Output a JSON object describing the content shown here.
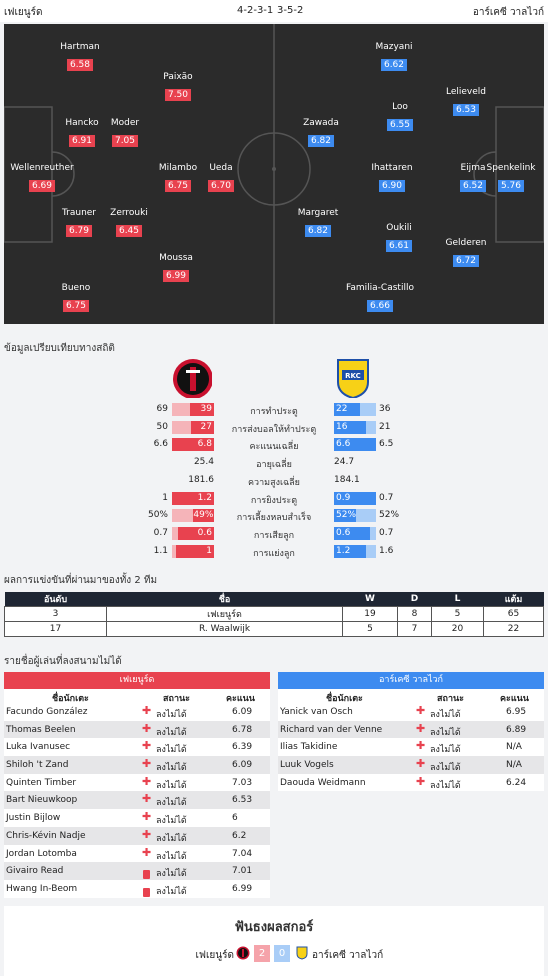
{
  "header": {
    "home_team": "เฟเยนูร์ด",
    "home_formation": "4-2-3-1",
    "away_formation": "3-5-2",
    "away_team": "อาร์เคซี วาลไวก์"
  },
  "lineup": {
    "home": [
      {
        "name": "Hartman",
        "rating": "6.58"
      },
      {
        "name": "Paixão",
        "rating": "7.50"
      },
      {
        "name": "Hancko",
        "rating": "6.91"
      },
      {
        "name": "Moder",
        "rating": "7.05"
      },
      {
        "name": "Wellenreuther",
        "rating": "6.69"
      },
      {
        "name": "Milambo",
        "rating": "6.75"
      },
      {
        "name": "Ueda",
        "rating": "6.70"
      },
      {
        "name": "Trauner",
        "rating": "6.79"
      },
      {
        "name": "Zerrouki",
        "rating": "6.45"
      },
      {
        "name": "Moussa",
        "rating": "6.99"
      },
      {
        "name": "Bueno",
        "rating": "6.75"
      }
    ],
    "away": [
      {
        "name": "Mazyani",
        "rating": "6.62"
      },
      {
        "name": "Lelieveld",
        "rating": "6.53"
      },
      {
        "name": "Loo",
        "rating": "6.55"
      },
      {
        "name": "Zawada",
        "rating": "6.82"
      },
      {
        "name": "Ihattaren",
        "rating": "6.90"
      },
      {
        "name": "Eijma",
        "rating": "6.52"
      },
      {
        "name": "Spenkelink",
        "rating": "5.76"
      },
      {
        "name": "Margaret",
        "rating": "6.82"
      },
      {
        "name": "Oukili",
        "rating": "6.61"
      },
      {
        "name": "Gelderen",
        "rating": "6.72"
      },
      {
        "name": "Familia-Castillo",
        "rating": "6.66"
      }
    ]
  },
  "stats": {
    "title": "ข้อมูลเปรียบเทียบทางสถิติ",
    "rows": [
      {
        "label": "การทำประตู",
        "home_total": "69",
        "home_value": "39",
        "home_fill": 0.57,
        "away_value": "22",
        "away_total": "36",
        "away_fill": 0.61
      },
      {
        "label": "การส่งบอลให้ทำประตู",
        "home_total": "50",
        "home_value": "27",
        "home_fill": 0.54,
        "away_value": "16",
        "away_total": "21",
        "away_fill": 0.76
      },
      {
        "label": "คะแนนเฉลี่ย",
        "home_total": "6.6",
        "home_value": "6.8",
        "home_fill": 1.0,
        "away_value": "6.6",
        "away_total": "6.5",
        "away_fill": 1.0
      },
      {
        "label": "อายุเฉลี่ย",
        "home_plain": "25.4",
        "away_plain": "24.7"
      },
      {
        "label": "ความสูงเฉลี่ย",
        "home_plain": "181.6",
        "away_plain": "184.1"
      },
      {
        "label": "การยิงประตู",
        "home_total": "1",
        "home_value": "1.2",
        "home_fill": 1.0,
        "away_value": "0.9",
        "away_total": "0.7",
        "away_fill": 1.0
      },
      {
        "label": "การเลี้ยงหลบสำเร็จ",
        "home_total": "50%",
        "home_value": "49%",
        "home_fill": 0.49,
        "away_value": "52%",
        "away_total": "52%",
        "away_fill": 0.52
      },
      {
        "label": "การเสียลูก",
        "home_total": "0.7",
        "home_value": "0.6",
        "home_fill": 0.86,
        "away_value": "0.6",
        "away_total": "0.7",
        "away_fill": 0.86
      },
      {
        "label": "การแย่งลูก",
        "home_total": "1.1",
        "home_value": "1",
        "home_fill": 0.9,
        "away_value": "1.2",
        "away_total": "1.6",
        "away_fill": 0.75
      }
    ]
  },
  "h2h": {
    "title": "ผลการแข่งขันที่ผ่านมาของทั้ง 2 ทีม",
    "columns": [
      "อันดับ",
      "ชื่อ",
      "W",
      "D",
      "L",
      "แต้ม"
    ],
    "rows": [
      [
        "3",
        "เฟเยนูร์ด",
        "19",
        "8",
        "5",
        "65"
      ],
      [
        "17",
        "R. Waalwijk",
        "5",
        "7",
        "20",
        "22"
      ]
    ]
  },
  "missing": {
    "title": "รายชื่อผู้เล่นที่ลงสนามไม่ได้",
    "col_name": "ชื่อนักเตะ",
    "col_status": "สถานะ",
    "col_score": "คะแนน",
    "home_title": "เฟเยนูร์ด",
    "away_title": "อาร์เคซี วาลไวก์",
    "home": [
      {
        "name": "Facundo González",
        "status": "ลงไม่ได้",
        "score": "6.09",
        "icon": "cross"
      },
      {
        "name": "Thomas Beelen",
        "status": "ลงไม่ได้",
        "score": "6.78",
        "icon": "cross"
      },
      {
        "name": "Luka Ivanusec",
        "status": "ลงไม่ได้",
        "score": "6.39",
        "icon": "cross"
      },
      {
        "name": "Shiloh 't Zand",
        "status": "ลงไม่ได้",
        "score": "6.09",
        "icon": "cross"
      },
      {
        "name": "Quinten Timber",
        "status": "ลงไม่ได้",
        "score": "7.03",
        "icon": "cross"
      },
      {
        "name": "Bart Nieuwkoop",
        "status": "ลงไม่ได้",
        "score": "6.53",
        "icon": "cross"
      },
      {
        "name": "Justin Bijlow",
        "status": "ลงไม่ได้",
        "score": "6",
        "icon": "cross"
      },
      {
        "name": "Chris-Kévin Nadje",
        "status": "ลงไม่ได้",
        "score": "6.2",
        "icon": "cross"
      },
      {
        "name": "Jordan Lotomba",
        "status": "ลงไม่ได้",
        "score": "7.04",
        "icon": "cross"
      },
      {
        "name": "Givairo Read",
        "status": "ลงไม่ได้",
        "score": "7.01",
        "icon": "card"
      },
      {
        "name": "Hwang In-Beom",
        "status": "ลงไม่ได้",
        "score": "6.99",
        "icon": "card"
      }
    ],
    "away": [
      {
        "name": "Yanick van Osch",
        "status": "ลงไม่ได้",
        "score": "6.95",
        "icon": "cross"
      },
      {
        "name": "Richard van der Venne",
        "status": "ลงไม่ได้",
        "score": "6.89",
        "icon": "cross"
      },
      {
        "name": "Ilias Takidine",
        "status": "ลงไม่ได้",
        "score": "N/A",
        "icon": "cross"
      },
      {
        "name": "Luuk Vogels",
        "status": "ลงไม่ได้",
        "score": "N/A",
        "icon": "cross"
      },
      {
        "name": "Daouda Weidmann",
        "status": "ลงไม่ได้",
        "score": "6.24",
        "icon": "cross"
      }
    ]
  },
  "scorers": {
    "title": "ฟันธงผลสกอร์",
    "home_team": "เฟเยนูร์ด",
    "home_score": "2",
    "away_score": "0",
    "away_team": "อาร์เคซี วาลไวก์"
  },
  "colors": {
    "home": "#e8424f",
    "away": "#3d8bf0",
    "pitch": "#2b2b2b"
  }
}
